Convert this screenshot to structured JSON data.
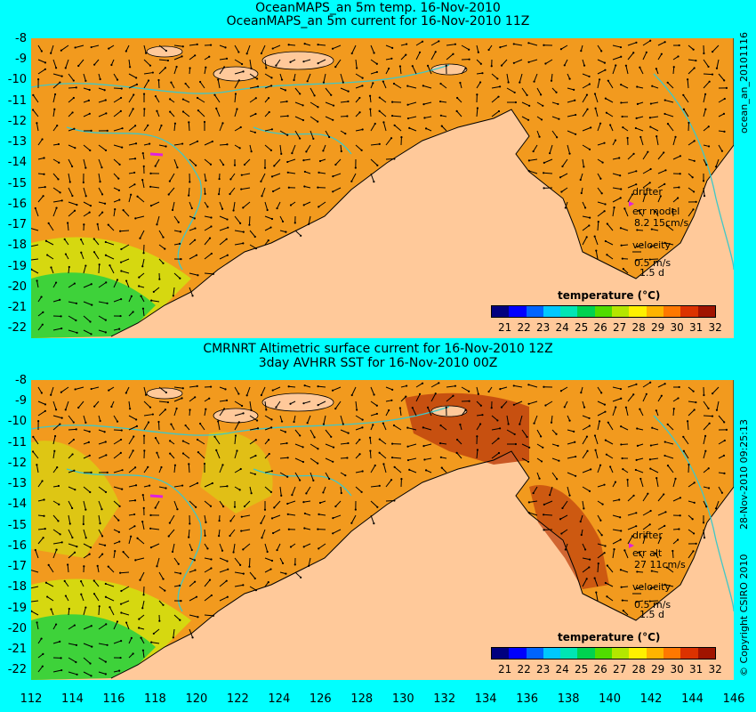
{
  "top_panel": {
    "title1": "OceanMAPS_an 5m temp. 16-Nov-2010",
    "title2": "OceanMAPS_an 5m current for 16-Nov-2010 11Z",
    "side_label": "ocean_an_20101116",
    "legend_title": "temperature (°C)",
    "drifter_label": "drifter",
    "err_label": "err model",
    "err_value": "8.2 15cm/s",
    "velocity_label": "velocity",
    "velocity_value": "0.5 m/s",
    "velocity_days": "1.5 d"
  },
  "bottom_panel": {
    "title1": "CMRNRT Altimetric surface current for 16-Nov-2010 12Z",
    "title2": "3day AVHRR SST for 16-Nov-2010 00Z",
    "side_label": "28-Nov-2010 09:25:13",
    "copyright": "© Copyright CSIRO 2010",
    "legend_title": "temperature (°C)",
    "drifter_label": "drifter",
    "err_label": "err alt",
    "err_value": "27 11cm/s",
    "velocity_label": "velocity",
    "velocity_value": "0.5 m/s",
    "velocity_days": "1.5 d"
  },
  "axes": {
    "y_ticks": [
      "-8",
      "-9",
      "-10",
      "-11",
      "-12",
      "-13",
      "-14",
      "-15",
      "-16",
      "-17",
      "-18",
      "-19",
      "-20",
      "-21",
      "-22"
    ],
    "x_ticks": [
      "112",
      "114",
      "116",
      "118",
      "120",
      "122",
      "124",
      "126",
      "128",
      "130",
      "132",
      "134",
      "136",
      "138",
      "140",
      "142",
      "144",
      "146"
    ]
  },
  "colorbar": {
    "ticks": [
      "21",
      "22",
      "23",
      "24",
      "25",
      "26",
      "27",
      "28",
      "29",
      "30",
      "31",
      "32"
    ],
    "colors": [
      "#00007f",
      "#0000ff",
      "#0064ff",
      "#00c8ff",
      "#00e6b4",
      "#00d250",
      "#50dc00",
      "#b4e600",
      "#fff000",
      "#ffb400",
      "#ff7800",
      "#dc3200",
      "#a01400"
    ]
  },
  "colors": {
    "background": "#00ffff",
    "land": "#ffc99a",
    "sea_warm": "#f29a1e",
    "sea_hot": "#c0430e",
    "sea_mid": "#d6d810",
    "sea_cool": "#3ed23a",
    "bathymetry": "#3ec8c8",
    "drifter": "#e020e0"
  }
}
